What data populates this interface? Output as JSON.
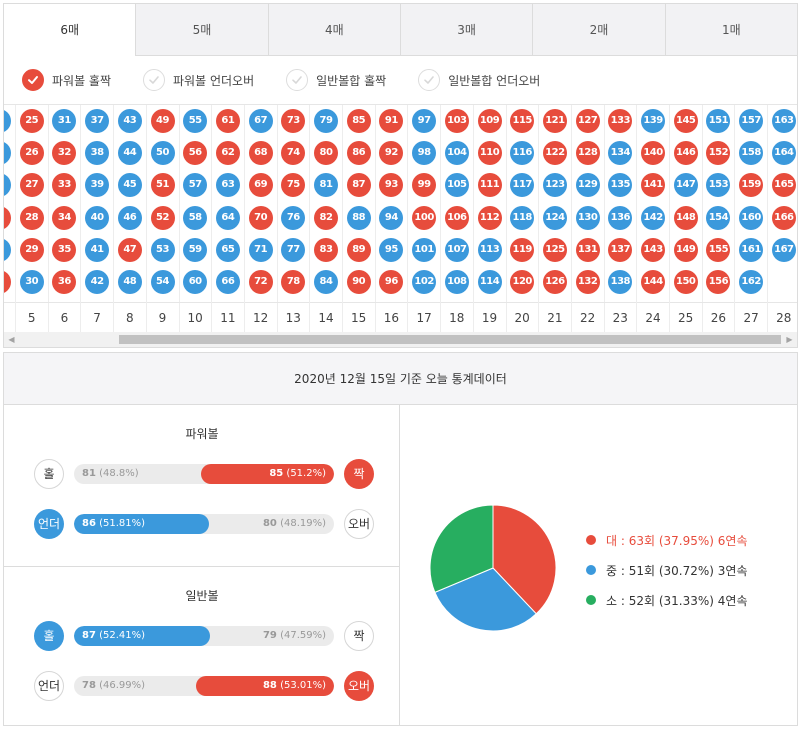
{
  "tabs": [
    {
      "label": "6매",
      "active": true
    },
    {
      "label": "5매",
      "active": false
    },
    {
      "label": "4매",
      "active": false
    },
    {
      "label": "3매",
      "active": false
    },
    {
      "label": "2매",
      "active": false
    },
    {
      "label": "1매",
      "active": false
    }
  ],
  "filters": [
    {
      "label": "파워볼 홀짝",
      "checked": true
    },
    {
      "label": "파워볼 언더오버",
      "checked": false
    },
    {
      "label": "일반볼합 홀짝",
      "checked": false
    },
    {
      "label": "일반볼합 언더오버",
      "checked": false
    }
  ],
  "colors": {
    "red": "#e74c3c",
    "blue": "#3b99dc",
    "green": "#27ae60"
  },
  "grid": {
    "column_numbers": [
      "",
      "5",
      "6",
      "7",
      "8",
      "9",
      "10",
      "11",
      "12",
      "13",
      "14",
      "15",
      "16",
      "17",
      "18",
      "19",
      "20",
      "21",
      "22",
      "23",
      "24",
      "25",
      "26",
      "27",
      "28"
    ],
    "columns": [
      [
        {
          "n": "",
          "c": "blue"
        },
        {
          "n": "",
          "c": "blue"
        },
        {
          "n": "",
          "c": "blue"
        },
        {
          "n": "",
          "c": "red"
        },
        {
          "n": "",
          "c": "blue"
        },
        {
          "n": "",
          "c": "red"
        }
      ],
      [
        {
          "n": "25",
          "c": "red"
        },
        {
          "n": "26",
          "c": "red"
        },
        {
          "n": "27",
          "c": "red"
        },
        {
          "n": "28",
          "c": "red"
        },
        {
          "n": "29",
          "c": "red"
        },
        {
          "n": "30",
          "c": "blue"
        }
      ],
      [
        {
          "n": "31",
          "c": "blue"
        },
        {
          "n": "32",
          "c": "red"
        },
        {
          "n": "33",
          "c": "red"
        },
        {
          "n": "34",
          "c": "red"
        },
        {
          "n": "35",
          "c": "red"
        },
        {
          "n": "36",
          "c": "red"
        }
      ],
      [
        {
          "n": "37",
          "c": "blue"
        },
        {
          "n": "38",
          "c": "blue"
        },
        {
          "n": "39",
          "c": "blue"
        },
        {
          "n": "40",
          "c": "blue"
        },
        {
          "n": "41",
          "c": "blue"
        },
        {
          "n": "42",
          "c": "blue"
        }
      ],
      [
        {
          "n": "43",
          "c": "blue"
        },
        {
          "n": "44",
          "c": "blue"
        },
        {
          "n": "45",
          "c": "blue"
        },
        {
          "n": "46",
          "c": "blue"
        },
        {
          "n": "47",
          "c": "red"
        },
        {
          "n": "48",
          "c": "blue"
        }
      ],
      [
        {
          "n": "49",
          "c": "red"
        },
        {
          "n": "50",
          "c": "blue"
        },
        {
          "n": "51",
          "c": "red"
        },
        {
          "n": "52",
          "c": "red"
        },
        {
          "n": "53",
          "c": "blue"
        },
        {
          "n": "54",
          "c": "blue"
        }
      ],
      [
        {
          "n": "55",
          "c": "blue"
        },
        {
          "n": "56",
          "c": "red"
        },
        {
          "n": "57",
          "c": "blue"
        },
        {
          "n": "58",
          "c": "blue"
        },
        {
          "n": "59",
          "c": "blue"
        },
        {
          "n": "60",
          "c": "blue"
        }
      ],
      [
        {
          "n": "61",
          "c": "red"
        },
        {
          "n": "62",
          "c": "red"
        },
        {
          "n": "63",
          "c": "blue"
        },
        {
          "n": "64",
          "c": "blue"
        },
        {
          "n": "65",
          "c": "blue"
        },
        {
          "n": "66",
          "c": "blue"
        }
      ],
      [
        {
          "n": "67",
          "c": "blue"
        },
        {
          "n": "68",
          "c": "red"
        },
        {
          "n": "69",
          "c": "red"
        },
        {
          "n": "70",
          "c": "red"
        },
        {
          "n": "71",
          "c": "blue"
        },
        {
          "n": "72",
          "c": "red"
        }
      ],
      [
        {
          "n": "73",
          "c": "red"
        },
        {
          "n": "74",
          "c": "red"
        },
        {
          "n": "75",
          "c": "red"
        },
        {
          "n": "76",
          "c": "blue"
        },
        {
          "n": "77",
          "c": "blue"
        },
        {
          "n": "78",
          "c": "red"
        }
      ],
      [
        {
          "n": "79",
          "c": "blue"
        },
        {
          "n": "80",
          "c": "red"
        },
        {
          "n": "81",
          "c": "blue"
        },
        {
          "n": "82",
          "c": "red"
        },
        {
          "n": "83",
          "c": "red"
        },
        {
          "n": "84",
          "c": "blue"
        }
      ],
      [
        {
          "n": "85",
          "c": "red"
        },
        {
          "n": "86",
          "c": "red"
        },
        {
          "n": "87",
          "c": "red"
        },
        {
          "n": "88",
          "c": "blue"
        },
        {
          "n": "89",
          "c": "red"
        },
        {
          "n": "90",
          "c": "red"
        }
      ],
      [
        {
          "n": "91",
          "c": "red"
        },
        {
          "n": "92",
          "c": "red"
        },
        {
          "n": "93",
          "c": "red"
        },
        {
          "n": "94",
          "c": "blue"
        },
        {
          "n": "95",
          "c": "blue"
        },
        {
          "n": "96",
          "c": "red"
        }
      ],
      [
        {
          "n": "97",
          "c": "blue"
        },
        {
          "n": "98",
          "c": "blue"
        },
        {
          "n": "99",
          "c": "red"
        },
        {
          "n": "100",
          "c": "red"
        },
        {
          "n": "101",
          "c": "blue"
        },
        {
          "n": "102",
          "c": "blue"
        }
      ],
      [
        {
          "n": "103",
          "c": "red"
        },
        {
          "n": "104",
          "c": "blue"
        },
        {
          "n": "105",
          "c": "blue"
        },
        {
          "n": "106",
          "c": "red"
        },
        {
          "n": "107",
          "c": "blue"
        },
        {
          "n": "108",
          "c": "blue"
        }
      ],
      [
        {
          "n": "109",
          "c": "red"
        },
        {
          "n": "110",
          "c": "red"
        },
        {
          "n": "111",
          "c": "red"
        },
        {
          "n": "112",
          "c": "red"
        },
        {
          "n": "113",
          "c": "blue"
        },
        {
          "n": "114",
          "c": "blue"
        }
      ],
      [
        {
          "n": "115",
          "c": "red"
        },
        {
          "n": "116",
          "c": "blue"
        },
        {
          "n": "117",
          "c": "blue"
        },
        {
          "n": "118",
          "c": "blue"
        },
        {
          "n": "119",
          "c": "red"
        },
        {
          "n": "120",
          "c": "red"
        }
      ],
      [
        {
          "n": "121",
          "c": "red"
        },
        {
          "n": "122",
          "c": "red"
        },
        {
          "n": "123",
          "c": "blue"
        },
        {
          "n": "124",
          "c": "blue"
        },
        {
          "n": "125",
          "c": "red"
        },
        {
          "n": "126",
          "c": "red"
        }
      ],
      [
        {
          "n": "127",
          "c": "red"
        },
        {
          "n": "128",
          "c": "red"
        },
        {
          "n": "129",
          "c": "blue"
        },
        {
          "n": "130",
          "c": "blue"
        },
        {
          "n": "131",
          "c": "red"
        },
        {
          "n": "132",
          "c": "red"
        }
      ],
      [
        {
          "n": "133",
          "c": "red"
        },
        {
          "n": "134",
          "c": "blue"
        },
        {
          "n": "135",
          "c": "blue"
        },
        {
          "n": "136",
          "c": "blue"
        },
        {
          "n": "137",
          "c": "red"
        },
        {
          "n": "138",
          "c": "blue"
        }
      ],
      [
        {
          "n": "139",
          "c": "blue"
        },
        {
          "n": "140",
          "c": "red"
        },
        {
          "n": "141",
          "c": "red"
        },
        {
          "n": "142",
          "c": "blue"
        },
        {
          "n": "143",
          "c": "red"
        },
        {
          "n": "144",
          "c": "red"
        }
      ],
      [
        {
          "n": "145",
          "c": "red"
        },
        {
          "n": "146",
          "c": "red"
        },
        {
          "n": "147",
          "c": "blue"
        },
        {
          "n": "148",
          "c": "red"
        },
        {
          "n": "149",
          "c": "red"
        },
        {
          "n": "150",
          "c": "red"
        }
      ],
      [
        {
          "n": "151",
          "c": "blue"
        },
        {
          "n": "152",
          "c": "red"
        },
        {
          "n": "153",
          "c": "blue"
        },
        {
          "n": "154",
          "c": "blue"
        },
        {
          "n": "155",
          "c": "red"
        },
        {
          "n": "156",
          "c": "red"
        }
      ],
      [
        {
          "n": "157",
          "c": "blue"
        },
        {
          "n": "158",
          "c": "blue"
        },
        {
          "n": "159",
          "c": "red"
        },
        {
          "n": "160",
          "c": "blue"
        },
        {
          "n": "161",
          "c": "blue"
        },
        {
          "n": "162",
          "c": "blue"
        }
      ],
      [
        {
          "n": "163",
          "c": "blue"
        },
        {
          "n": "164",
          "c": "blue"
        },
        {
          "n": "165",
          "c": "red"
        },
        {
          "n": "166",
          "c": "red"
        },
        {
          "n": "167",
          "c": "blue"
        }
      ]
    ]
  },
  "stats": {
    "title": "2020년 12월 15일 기준 오늘 통계데이터",
    "powerball": {
      "title": "파워볼",
      "odd_even": {
        "left_label": "홀",
        "right_label": "짝",
        "left_count": "81",
        "left_pct": "(48.8%)",
        "right_count": "85",
        "right_pct": "(51.2%)",
        "fill_fraction": 0.512
      },
      "under_over": {
        "left_label": "언더",
        "right_label": "오버",
        "left_count": "86",
        "left_pct": "(51.81%)",
        "right_count": "80",
        "right_pct": "(48.19%)",
        "fill_fraction": 0.5181
      }
    },
    "normal": {
      "title": "일반볼",
      "odd_even": {
        "left_label": "홀",
        "right_label": "짝",
        "left_count": "87",
        "left_pct": "(52.41%)",
        "right_count": "79",
        "right_pct": "(47.59%)",
        "fill_fraction": 0.5241
      },
      "under_over": {
        "left_label": "언더",
        "right_label": "오버",
        "left_count": "78",
        "left_pct": "(46.99%)",
        "right_count": "88",
        "right_pct": "(53.01%)",
        "fill_fraction": 0.5301
      }
    },
    "pie": {
      "legend": [
        {
          "text": "대 : 63회 (37.95%) 6연속"
        },
        {
          "text": "중 : 51회 (30.72%) 3연속"
        },
        {
          "text": "소 : 52회 (31.33%) 4연속"
        }
      ]
    }
  },
  "chart_data": {
    "type": "pie",
    "categories": [
      "대",
      "중",
      "소"
    ],
    "values": [
      63,
      51,
      52
    ],
    "percentages": [
      37.95,
      30.72,
      31.33
    ],
    "colors": [
      "#e74c3c",
      "#3b99dc",
      "#27ae60"
    ]
  }
}
